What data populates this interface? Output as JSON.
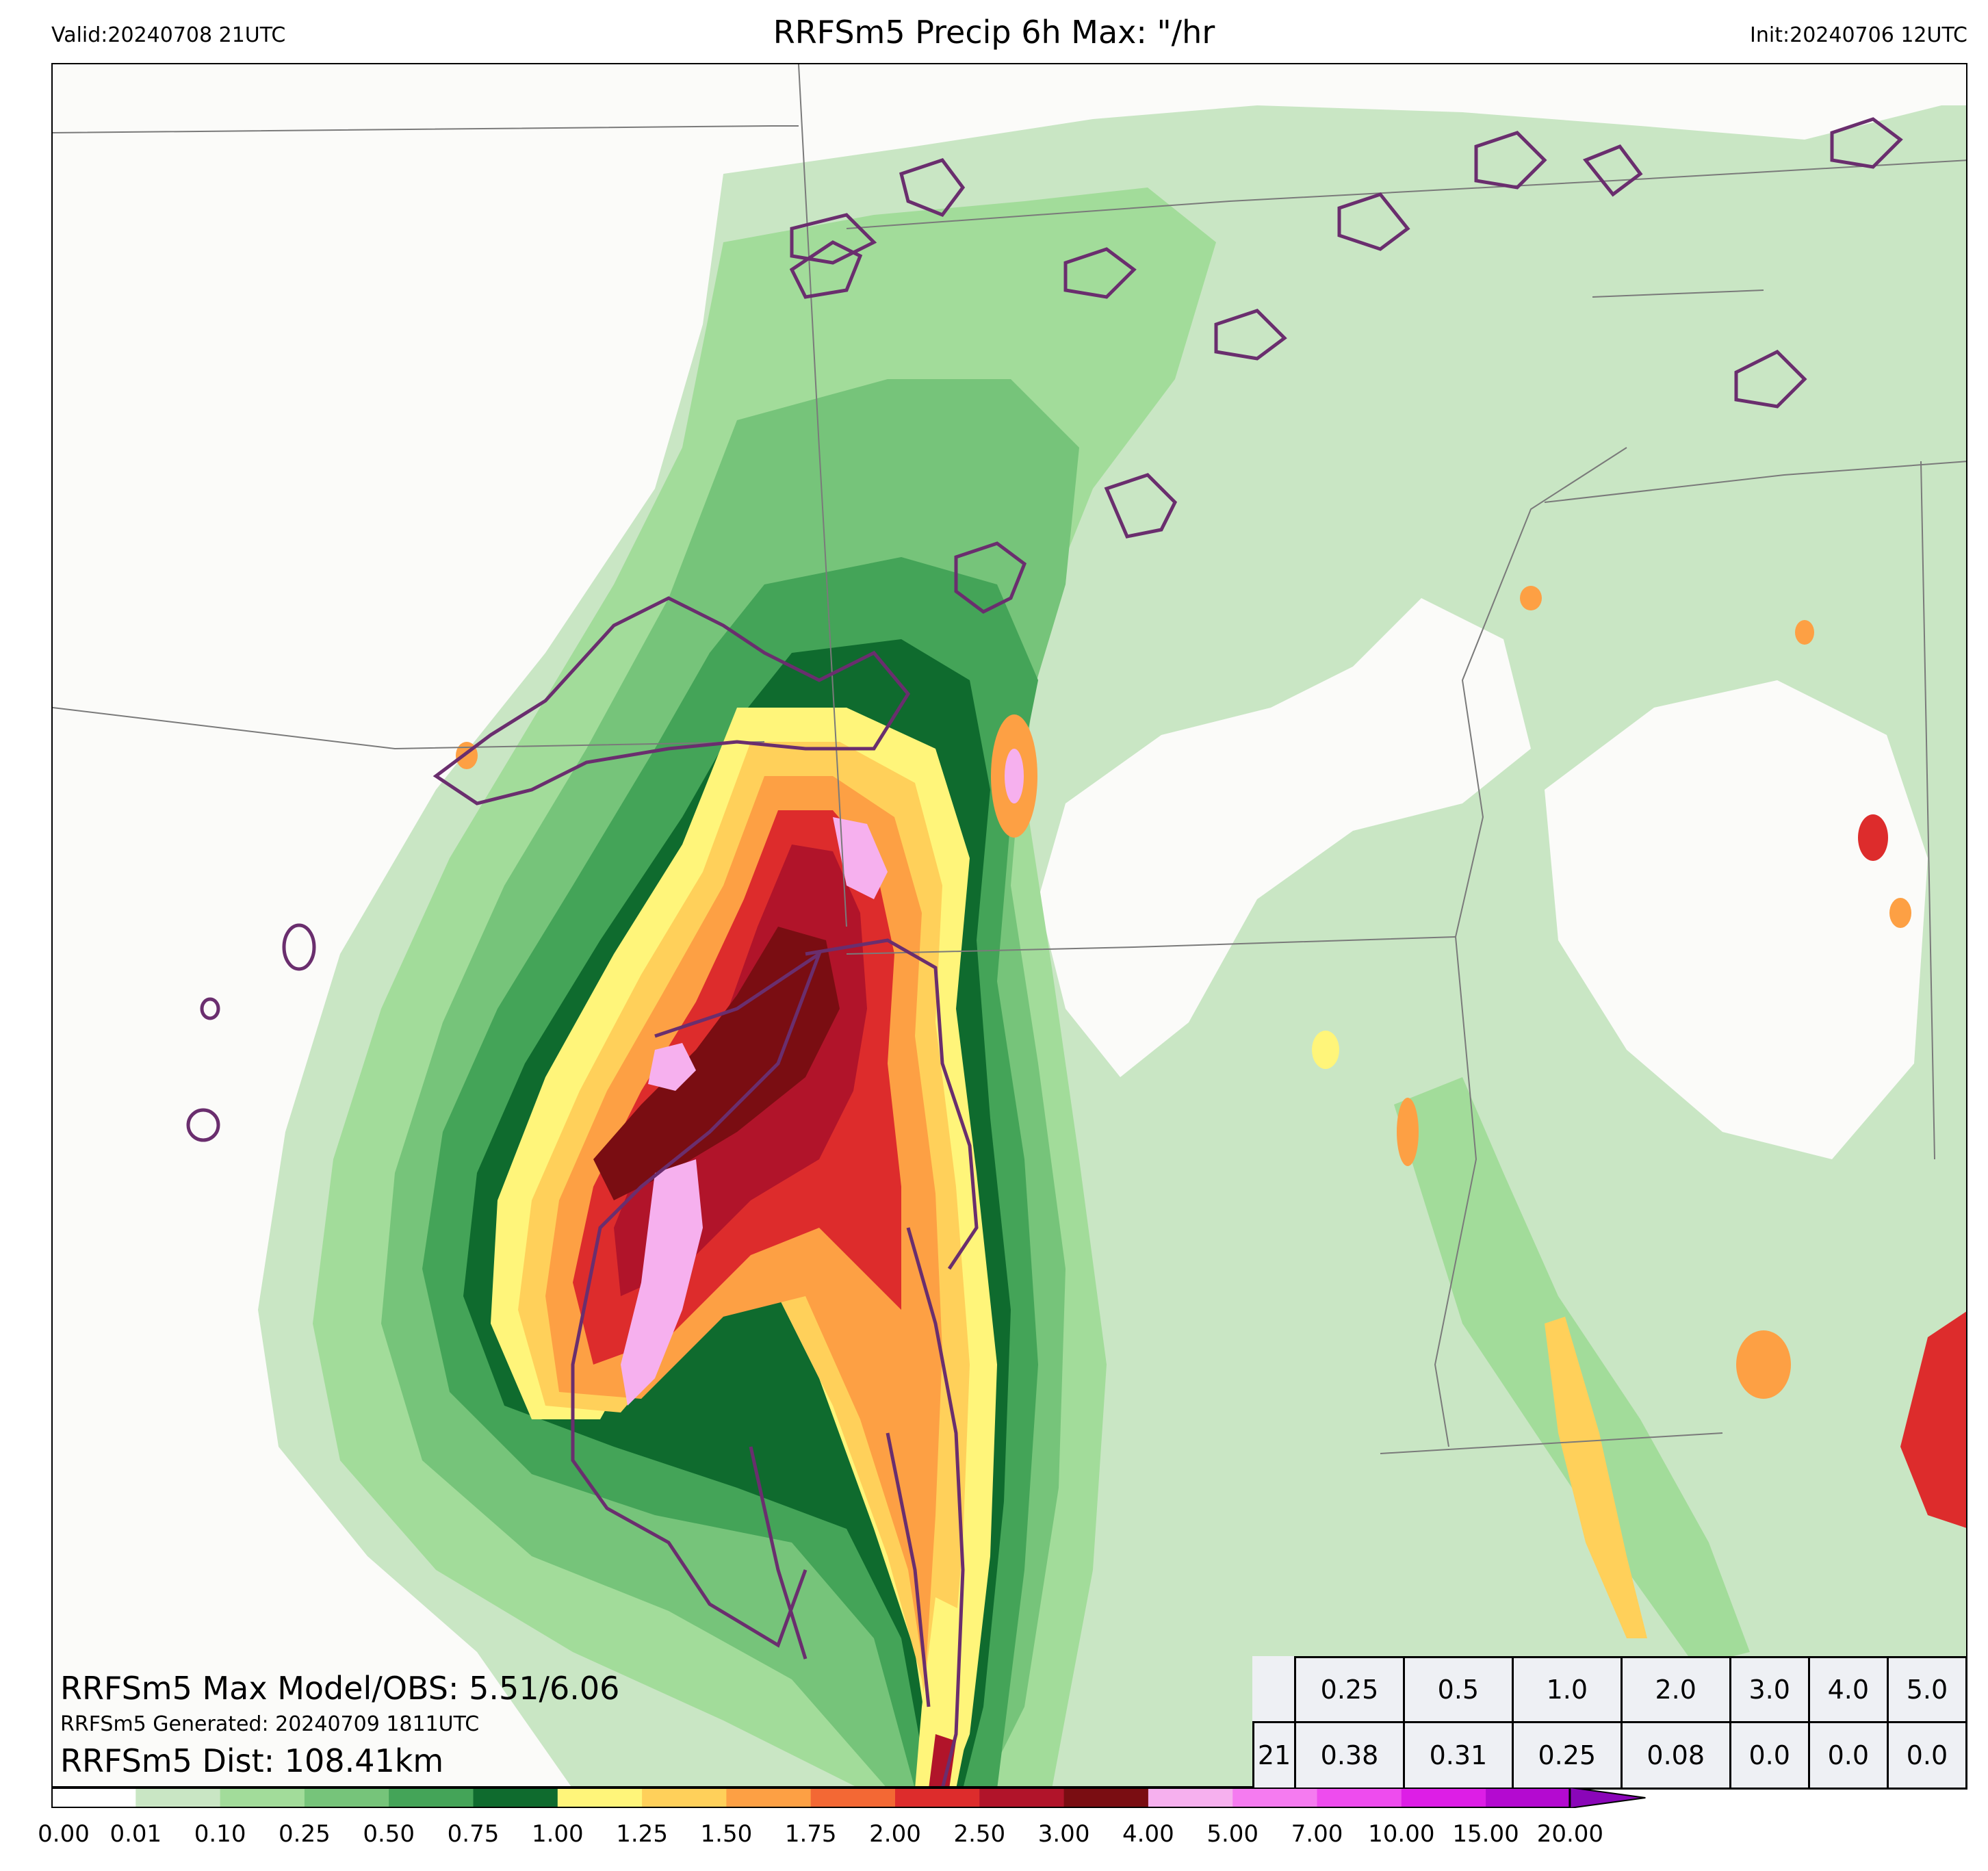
{
  "header": {
    "valid": "Valid:20240708 21UTC",
    "title": "RRFSm5 Precip 6h Max: \"/hr",
    "init": "Init:20240706 12UTC"
  },
  "annotations": {
    "max_model_obs": "RRFSm5 Max Model/OBS: 5.51/6.06",
    "generated": "RRFSm5 Generated: 20240709 1811UTC",
    "distance": "RRFSm5 Dist: 108.41km"
  },
  "stats_table": {
    "thresholds": [
      "0.25",
      "0.5",
      "1.0",
      "2.0",
      "3.0",
      "4.0",
      "5.0"
    ],
    "row_label": "21",
    "values": [
      "0.38",
      "0.31",
      "0.25",
      "0.08",
      "0.0",
      "0.0",
      "0.0"
    ]
  },
  "colorbar": {
    "ticks": [
      "0.00",
      "0.01",
      "0.10",
      "0.25",
      "0.50",
      "0.75",
      "1.00",
      "1.25",
      "1.50",
      "1.75",
      "2.00",
      "2.50",
      "3.00",
      "4.00",
      "5.00",
      "7.00",
      "10.00",
      "15.00",
      "20.00"
    ],
    "colors": [
      "#ffffff",
      "#c9e6c4",
      "#a2dc9a",
      "#76c47a",
      "#44a458",
      "#0f6b2e",
      "#fff57a",
      "#ffd05a",
      "#fda044",
      "#f36834",
      "#dd2c2c",
      "#b1142a",
      "#7a0d12",
      "#f6b0ee",
      "#f57bf0",
      "#ee4cee",
      "#dd1ee6",
      "#b40ad0",
      "#8a06b8"
    ]
  },
  "colors": {
    "land": "#fbfbf9",
    "water": "#eef2f7",
    "observed_contour": "#6a2e6e",
    "boundaries": "#7a7a7a"
  }
}
